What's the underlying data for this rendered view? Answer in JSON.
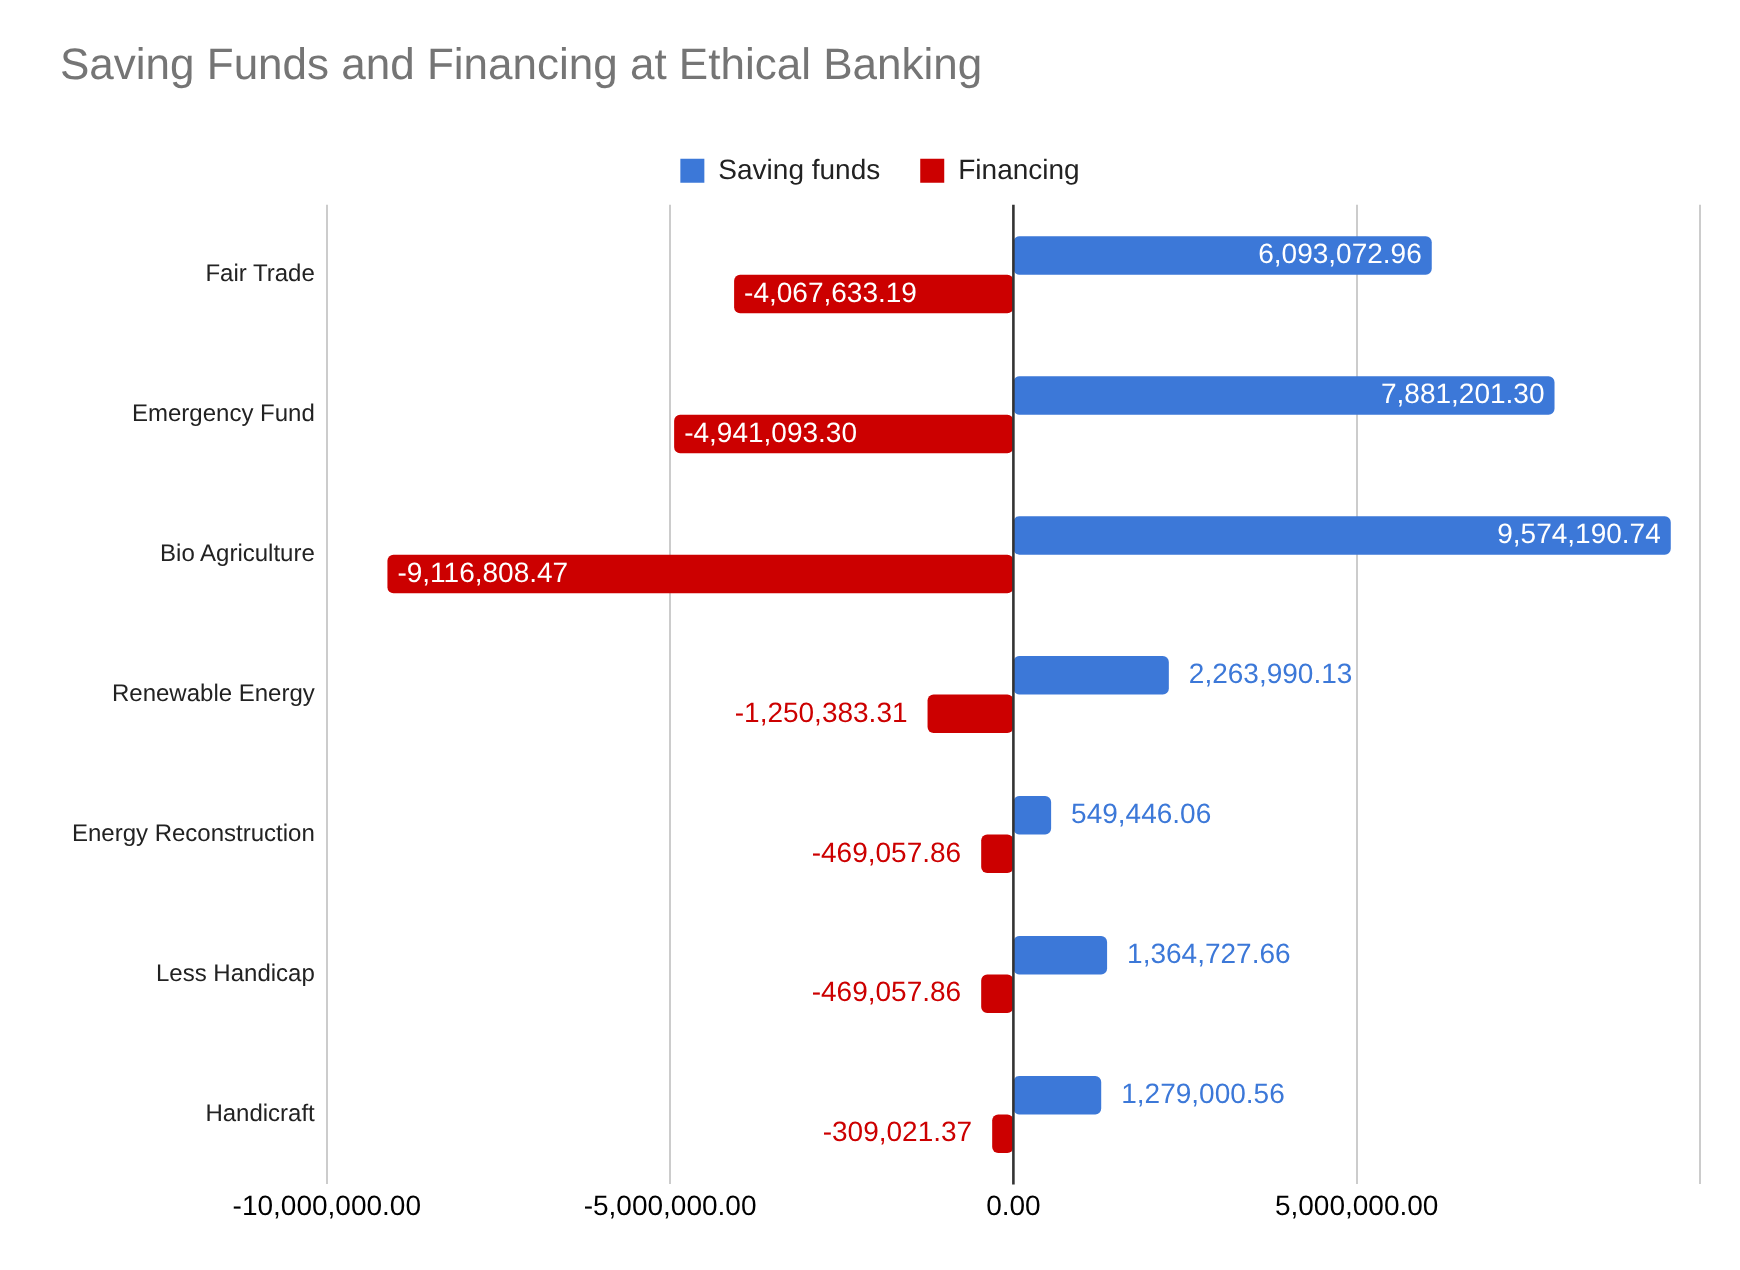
{
  "chart_data": {
    "type": "bar",
    "orientation": "horizontal",
    "title": "Saving Funds and Financing at Ethical Banking",
    "categories": [
      "Fair Trade",
      "Emergency Fund",
      "Bio Agriculture",
      "Renewable Energy",
      "Energy Reconstruction",
      "Less Handicap",
      "Handicraft"
    ],
    "series": [
      {
        "name": "Saving funds",
        "color": "#3c78d8",
        "values": [
          6093072.96,
          7881201.3,
          9574190.74,
          2263990.13,
          549446.06,
          1364727.66,
          1279000.56
        ],
        "value_labels": [
          "6,093,072.96",
          "7,881,201.30",
          "9,574,190.74",
          "2,263,990.13",
          "549,446.06",
          "1,364,727.66",
          "1,279,000.56"
        ]
      },
      {
        "name": "Financing",
        "color": "#cc0000",
        "values": [
          -4067633.19,
          -4941093.3,
          -9116808.47,
          -1250383.31,
          -469057.86,
          -469057.86,
          -309021.37
        ],
        "value_labels": [
          "-4,067,633.19",
          "-4,941,093.30",
          "-9,116,808.47",
          "-1,250,383.31",
          "-469,057.86",
          "-469,057.86",
          "-309,021.37"
        ]
      }
    ],
    "xlim": [
      -10000000,
      10000000
    ],
    "xticks": [
      {
        "value": -10000000,
        "label": "-10,000,000.00"
      },
      {
        "value": -5000000,
        "label": "-5,000,000.00"
      },
      {
        "value": 0,
        "label": "0.00"
      },
      {
        "value": 5000000,
        "label": "5,000,000.00"
      },
      {
        "value": 10000000,
        "label": null
      }
    ],
    "grid": "x",
    "legend": "top"
  }
}
